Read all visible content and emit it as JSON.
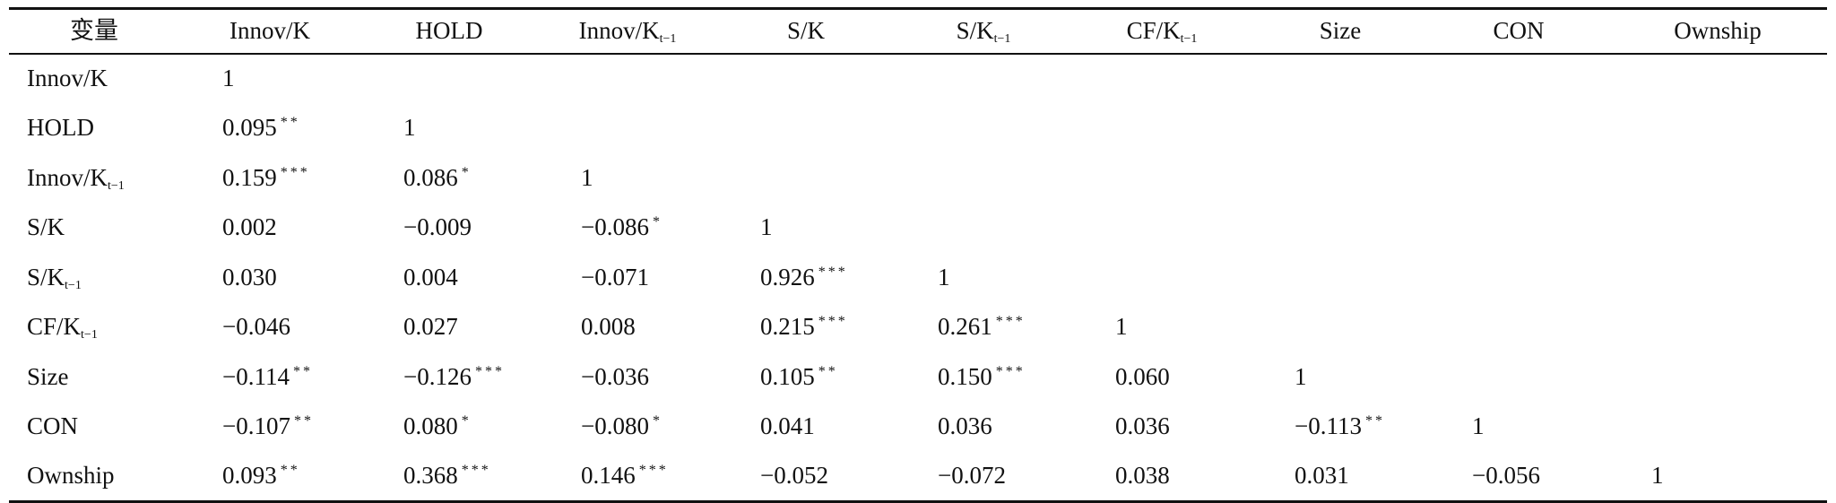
{
  "table": {
    "header": [
      {
        "base": "变量",
        "sub": ""
      },
      {
        "base": "Innov/K",
        "sub": ""
      },
      {
        "base": "HOLD",
        "sub": ""
      },
      {
        "base": "Innov/K",
        "sub": "t−1"
      },
      {
        "base": "S/K",
        "sub": ""
      },
      {
        "base": "S/K",
        "sub": "t−1"
      },
      {
        "base": "CF/K",
        "sub": "t−1"
      },
      {
        "base": "Size",
        "sub": ""
      },
      {
        "base": "CON",
        "sub": ""
      },
      {
        "base": "Ownship",
        "sub": ""
      }
    ],
    "rows": [
      {
        "base": "Innov/K",
        "sub": "",
        "cells": [
          {
            "v": "1",
            "s": ""
          }
        ]
      },
      {
        "base": "HOLD",
        "sub": "",
        "cells": [
          {
            "v": "0.095",
            "s": "**"
          },
          {
            "v": "1",
            "s": ""
          }
        ]
      },
      {
        "base": "Innov/K",
        "sub": "t−1",
        "cells": [
          {
            "v": "0.159",
            "s": "***"
          },
          {
            "v": "0.086",
            "s": "*"
          },
          {
            "v": "1",
            "s": ""
          }
        ]
      },
      {
        "base": "S/K",
        "sub": "",
        "cells": [
          {
            "v": "0.002",
            "s": ""
          },
          {
            "v": "−0.009",
            "s": ""
          },
          {
            "v": "−0.086",
            "s": "*"
          },
          {
            "v": "1",
            "s": ""
          }
        ]
      },
      {
        "base": "S/K",
        "sub": "t−1",
        "cells": [
          {
            "v": "0.030",
            "s": ""
          },
          {
            "v": "0.004",
            "s": ""
          },
          {
            "v": "−0.071",
            "s": ""
          },
          {
            "v": "0.926",
            "s": "***"
          },
          {
            "v": "1",
            "s": ""
          }
        ]
      },
      {
        "base": "CF/K",
        "sub": "t−1",
        "cells": [
          {
            "v": "−0.046",
            "s": ""
          },
          {
            "v": "0.027",
            "s": ""
          },
          {
            "v": "0.008",
            "s": ""
          },
          {
            "v": "0.215",
            "s": "***"
          },
          {
            "v": "0.261",
            "s": "***"
          },
          {
            "v": "1",
            "s": ""
          }
        ]
      },
      {
        "base": "Size",
        "sub": "",
        "cells": [
          {
            "v": "−0.114",
            "s": "**"
          },
          {
            "v": "−0.126",
            "s": "***"
          },
          {
            "v": "−0.036",
            "s": ""
          },
          {
            "v": "0.105",
            "s": "**"
          },
          {
            "v": "0.150",
            "s": "***"
          },
          {
            "v": "0.060",
            "s": ""
          },
          {
            "v": "1",
            "s": ""
          }
        ]
      },
      {
        "base": "CON",
        "sub": "",
        "cells": [
          {
            "v": "−0.107",
            "s": "**"
          },
          {
            "v": "0.080",
            "s": "*"
          },
          {
            "v": "−0.080",
            "s": "*"
          },
          {
            "v": "0.041",
            "s": ""
          },
          {
            "v": "0.036",
            "s": ""
          },
          {
            "v": "0.036",
            "s": ""
          },
          {
            "v": "−0.113",
            "s": "**"
          },
          {
            "v": "1",
            "s": ""
          }
        ]
      },
      {
        "base": "Ownship",
        "sub": "",
        "cells": [
          {
            "v": "0.093",
            "s": "**"
          },
          {
            "v": "0.368",
            "s": "***"
          },
          {
            "v": "0.146",
            "s": "***"
          },
          {
            "v": "−0.052",
            "s": ""
          },
          {
            "v": "−0.072",
            "s": ""
          },
          {
            "v": "0.038",
            "s": ""
          },
          {
            "v": "0.031",
            "s": ""
          },
          {
            "v": "−0.056",
            "s": ""
          },
          {
            "v": "1",
            "s": ""
          }
        ]
      }
    ]
  }
}
